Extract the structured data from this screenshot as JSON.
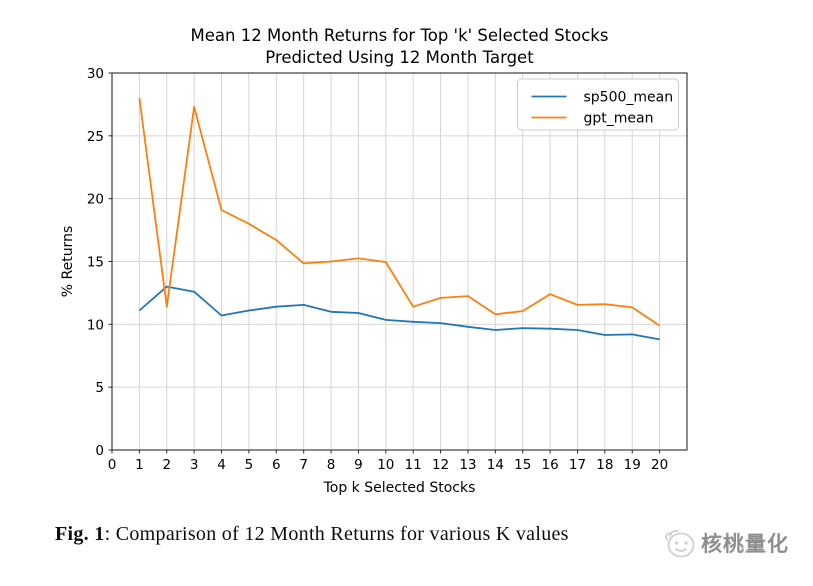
{
  "page": {
    "background": "#ffffff"
  },
  "chart_data": {
    "type": "line",
    "title": "Mean 12 Month Returns for Top 'k' Selected Stocks Predicted Using 12 Month Target",
    "title_lines": [
      "Mean 12 Month Returns for Top 'k' Selected Stocks",
      "Predicted Using 12 Month Target"
    ],
    "xlabel": "Top k Selected Stocks",
    "ylabel": "% Returns",
    "x": [
      1,
      2,
      3,
      4,
      5,
      6,
      7,
      8,
      9,
      10,
      11,
      12,
      13,
      14,
      15,
      16,
      17,
      18,
      19,
      20
    ],
    "series": [
      {
        "name": "sp500_mean",
        "color": "#1f77b4",
        "values": [
          11.1,
          13.0,
          12.6,
          10.7,
          11.1,
          11.4,
          11.55,
          11.0,
          10.9,
          10.35,
          10.2,
          10.1,
          9.8,
          9.55,
          9.7,
          9.65,
          9.55,
          9.15,
          9.2,
          8.8
        ]
      },
      {
        "name": "gpt_mean",
        "color": "#ff7f0e",
        "values": [
          28.0,
          11.4,
          27.3,
          19.1,
          18.0,
          16.7,
          14.85,
          15.0,
          15.25,
          14.95,
          11.4,
          12.1,
          12.25,
          10.8,
          11.05,
          12.4,
          11.55,
          11.6,
          11.35,
          9.9
        ]
      }
    ],
    "xlim": [
      0,
      21
    ],
    "ylim": [
      0,
      30
    ],
    "xticks": [
      0,
      1,
      2,
      3,
      4,
      5,
      6,
      7,
      8,
      9,
      10,
      11,
      12,
      13,
      14,
      15,
      16,
      17,
      18,
      19,
      20
    ],
    "yticks": [
      0,
      5,
      10,
      15,
      20,
      25,
      30
    ],
    "grid": true,
    "legend_position": "upper right",
    "grid_color": "#d4d4d4",
    "axis_color": "#2b2b2b",
    "text_color": "#000000",
    "legend_border_color": "#cccccc"
  },
  "caption": {
    "label": "Fig. 1",
    "text": ": Comparison of 12 Month Returns for various K values"
  },
  "watermark": {
    "text": "核桃量化",
    "color": "#8f8f8f"
  }
}
